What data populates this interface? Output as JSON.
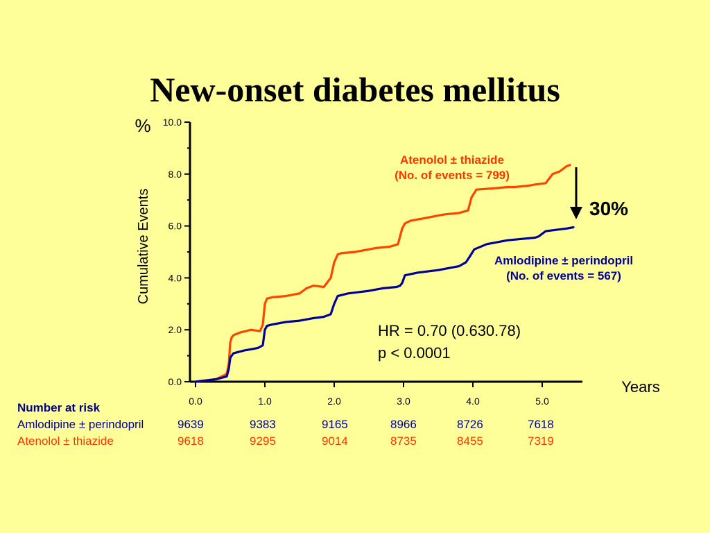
{
  "title": "New-onset diabetes mellitus",
  "chart_data": {
    "type": "line",
    "ylabel": "Cumulative Events",
    "yunit": "%",
    "xlabel": "Years",
    "ylim": [
      0,
      10
    ],
    "xlim": [
      0,
      5.5
    ],
    "yticks": [
      "0.0",
      "2.0",
      "4.0",
      "6.0",
      "8.0",
      "10.0"
    ],
    "xticks": [
      "0.0",
      "1.0",
      "2.0",
      "3.0",
      "4.0",
      "5.0"
    ],
    "series": [
      {
        "name": "Atenolol ± thiazide",
        "label_line1": "Atenolol ± thiazide",
        "label_line2": "(No. of events = 799)",
        "color": "#FF4400",
        "x": [
          0,
          0.3,
          0.45,
          0.48,
          0.5,
          0.52,
          0.55,
          0.65,
          0.8,
          0.93,
          0.97,
          1.0,
          1.03,
          1.1,
          1.3,
          1.5,
          1.55,
          1.6,
          1.7,
          1.85,
          1.95,
          2.0,
          2.05,
          2.1,
          2.3,
          2.5,
          2.6,
          2.8,
          2.92,
          2.98,
          3.02,
          3.1,
          3.3,
          3.5,
          3.6,
          3.8,
          3.93,
          3.98,
          4.05,
          4.3,
          4.5,
          4.6,
          4.8,
          4.9,
          5.05,
          5.15,
          5.25,
          5.35,
          5.4
        ],
        "y": [
          0,
          0.1,
          0.3,
          0.7,
          1.5,
          1.7,
          1.8,
          1.9,
          2.0,
          1.95,
          2.2,
          3.0,
          3.2,
          3.25,
          3.3,
          3.4,
          3.5,
          3.6,
          3.7,
          3.65,
          4.0,
          4.6,
          4.9,
          4.95,
          5.0,
          5.1,
          5.15,
          5.2,
          5.3,
          5.9,
          6.1,
          6.2,
          6.3,
          6.4,
          6.45,
          6.5,
          6.6,
          7.1,
          7.4,
          7.45,
          7.5,
          7.5,
          7.55,
          7.6,
          7.65,
          8.0,
          8.1,
          8.3,
          8.35
        ]
      },
      {
        "name": "Amlodipine ± perindopril",
        "label_line1": "Amlodipine ± perindopril",
        "label_line2": "(No. of events = 567)",
        "color": "#000099",
        "x": [
          0,
          0.3,
          0.45,
          0.48,
          0.5,
          0.52,
          0.55,
          0.7,
          0.9,
          0.97,
          1.0,
          1.03,
          1.1,
          1.3,
          1.5,
          1.7,
          1.85,
          1.95,
          2.0,
          2.05,
          2.2,
          2.5,
          2.7,
          2.9,
          2.95,
          2.98,
          3.02,
          3.2,
          3.5,
          3.7,
          3.8,
          3.9,
          3.95,
          4.02,
          4.2,
          4.5,
          4.7,
          4.9,
          4.95,
          5.0,
          5.05,
          5.2,
          5.35,
          5.45
        ],
        "y": [
          0,
          0.1,
          0.2,
          0.5,
          0.9,
          1.0,
          1.1,
          1.2,
          1.3,
          1.4,
          2.0,
          2.15,
          2.2,
          2.3,
          2.35,
          2.45,
          2.5,
          2.6,
          3.0,
          3.3,
          3.4,
          3.5,
          3.6,
          3.65,
          3.7,
          3.8,
          4.1,
          4.2,
          4.3,
          4.4,
          4.45,
          4.6,
          4.8,
          5.1,
          5.3,
          5.45,
          5.5,
          5.55,
          5.6,
          5.7,
          5.8,
          5.85,
          5.9,
          5.95
        ]
      }
    ],
    "annotations": {
      "reduction": "30%",
      "hr_line1": "HR = 0.70 (0.630.78)",
      "hr_line2": "p < 0.0001"
    }
  },
  "risk_table": {
    "heading": "Number at risk",
    "rows": [
      {
        "label": "Amlodipine ± perindopril",
        "values": [
          "9639",
          "9383",
          "9165",
          "8966",
          "8726",
          "7618"
        ]
      },
      {
        "label": "Atenolol ± thiazide",
        "values": [
          "9618",
          "9295",
          "9014",
          "8735",
          "8455",
          "7319"
        ]
      }
    ]
  },
  "colors": {
    "background": "#FFFF99",
    "atenolol": "#FF4400",
    "amlodipine": "#000099",
    "axis": "#000000"
  }
}
